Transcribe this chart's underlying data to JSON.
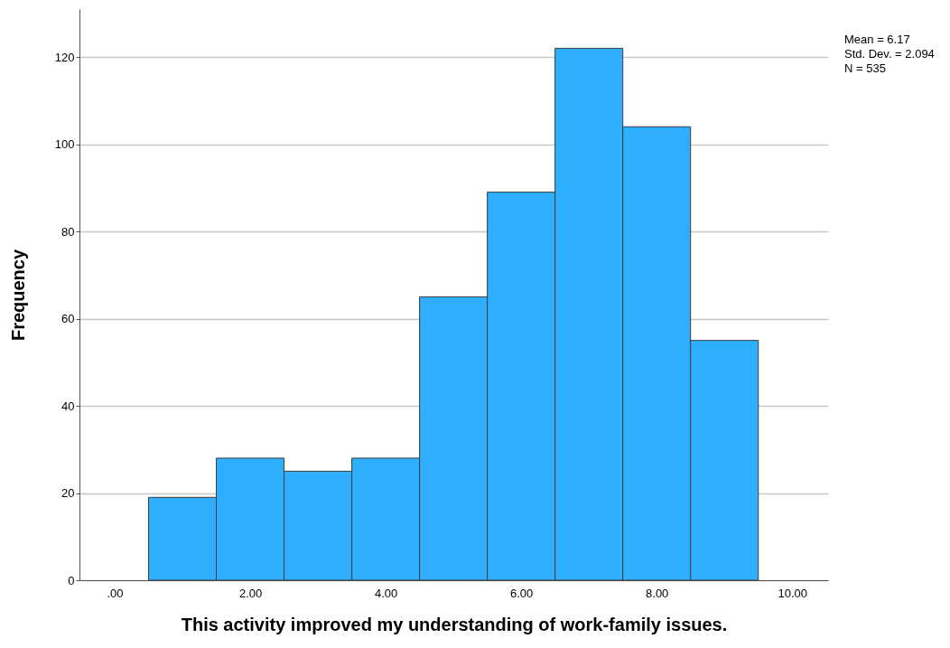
{
  "chart_data": {
    "type": "histogram",
    "xlabel": "This activity improved my understanding of work-family issues.",
    "ylabel": "Frequency",
    "bins": [
      0.5,
      1.5,
      2.5,
      3.5,
      4.5,
      5.5,
      6.5,
      7.5,
      8.5,
      9.5
    ],
    "values": [
      19,
      28,
      25,
      28,
      65,
      89,
      122,
      104,
      55
    ],
    "color": "#2eaefe",
    "xlim": [
      -0.52,
      10.53
    ],
    "xticks": [
      {
        "value": 0,
        "label": ".00"
      },
      {
        "value": 2,
        "label": "2.00"
      },
      {
        "value": 4,
        "label": "4.00"
      },
      {
        "value": 6,
        "label": "6.00"
      },
      {
        "value": 8,
        "label": "8.00"
      },
      {
        "value": 10,
        "label": "10.00"
      }
    ],
    "ylim": [
      0,
      131
    ],
    "yticks": [
      0,
      20,
      40,
      60,
      80,
      100,
      120
    ],
    "grid": "y",
    "annotations": [
      "Mean = 6.17",
      "Std. Dev. = 2.094",
      "N = 535"
    ]
  }
}
